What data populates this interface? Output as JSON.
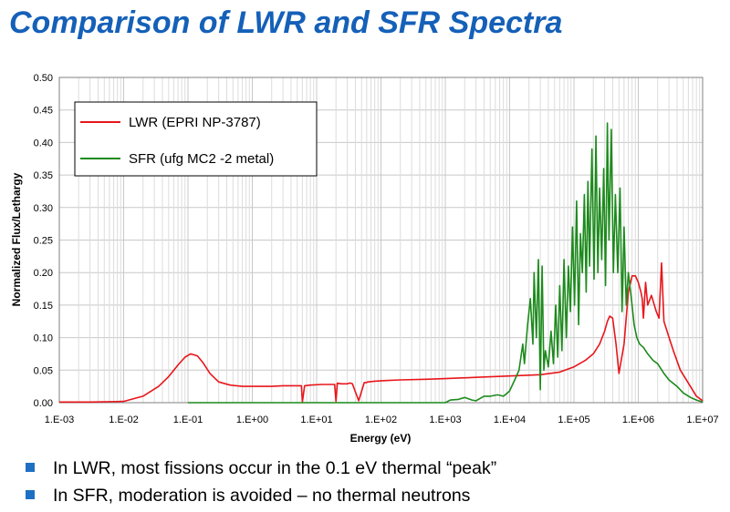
{
  "slide": {
    "title": "Comparison of LWR and SFR Spectra",
    "bullets": [
      "In LWR, most fissions occur in the 0.1 eV thermal “peak”",
      "In SFR, moderation is avoided – no thermal neutrons"
    ],
    "bullet_marker": "square-bullet-icon",
    "bullet_color": "#1f6fc5"
  },
  "chart_data": {
    "type": "line",
    "xlabel": "Energy (eV)",
    "ylabel": "Normalized Flux/Lethargy",
    "x_scale": "log",
    "xlim": [
      0.001,
      10000000
    ],
    "ylim": [
      0,
      0.5
    ],
    "x_ticks": [
      "1.E-03",
      "1.E-02",
      "1.E-01",
      "1.E+00",
      "1.E+01",
      "1.E+02",
      "1.E+03",
      "1.E+04",
      "1.E+05",
      "1.E+06",
      "1.E+07"
    ],
    "y_ticks": [
      "0.00",
      "0.05",
      "0.10",
      "0.15",
      "0.20",
      "0.25",
      "0.30",
      "0.35",
      "0.40",
      "0.45",
      "0.50"
    ],
    "grid": true,
    "legend_position": "top-left",
    "series": [
      {
        "name": "LWR (EPRI NP-3787)",
        "color": "#e8161b",
        "x": [
          0.001,
          0.003,
          0.01,
          0.02,
          0.035,
          0.05,
          0.07,
          0.09,
          0.11,
          0.14,
          0.17,
          0.22,
          0.3,
          0.45,
          0.7,
          1.0,
          1.5,
          2,
          3,
          4,
          5,
          5.8,
          6.0,
          6.5,
          8,
          12,
          16,
          19,
          20,
          21,
          24,
          30,
          32,
          34,
          36,
          45,
          55,
          60,
          62,
          64,
          80,
          120,
          200,
          500,
          1000,
          3000,
          10000,
          30000,
          60000,
          100000,
          150000,
          200000,
          250000,
          300000,
          330000,
          360000,
          400000,
          450000,
          500000,
          600000,
          700000,
          800000,
          900000,
          1000000,
          1100000,
          1150000,
          1200000,
          1300000,
          1400000,
          1600000,
          1900000,
          2100000,
          2300000,
          2500000,
          2900000,
          3500000,
          4500000,
          6000000,
          8000000,
          10000000
        ],
        "y": [
          0.001,
          0.001,
          0.002,
          0.01,
          0.025,
          0.04,
          0.058,
          0.07,
          0.075,
          0.072,
          0.062,
          0.045,
          0.032,
          0.027,
          0.025,
          0.025,
          0.025,
          0.025,
          0.026,
          0.026,
          0.026,
          0.026,
          0.001,
          0.026,
          0.027,
          0.028,
          0.028,
          0.028,
          0.002,
          0.03,
          0.029,
          0.029,
          0.03,
          0.03,
          0.029,
          0.003,
          0.031,
          0.031,
          0.032,
          0.032,
          0.033,
          0.034,
          0.035,
          0.036,
          0.037,
          0.039,
          0.041,
          0.043,
          0.047,
          0.055,
          0.065,
          0.075,
          0.09,
          0.11,
          0.125,
          0.133,
          0.13,
          0.09,
          0.045,
          0.09,
          0.17,
          0.195,
          0.195,
          0.185,
          0.17,
          0.16,
          0.13,
          0.185,
          0.15,
          0.165,
          0.14,
          0.13,
          0.215,
          0.125,
          0.105,
          0.08,
          0.05,
          0.03,
          0.01,
          0.003
        ]
      },
      {
        "name": "SFR (ufg MC2 -2 metal)",
        "color": "#1c8a1c",
        "x": [
          0.1,
          1000,
          1200,
          1600,
          2000,
          2600,
          3000,
          4000,
          5000,
          6500,
          8000,
          9000,
          10000,
          12000,
          14000,
          16000,
          17000,
          19000,
          21000,
          23000,
          24000,
          26000,
          28000,
          30000,
          32000,
          34000,
          36000,
          40000,
          44000,
          48000,
          52000,
          56000,
          60000,
          65000,
          70000,
          76000,
          82000,
          88000,
          95000,
          102000,
          110000,
          118000,
          126000,
          135000,
          145000,
          155000,
          165000,
          175000,
          190000,
          205000,
          220000,
          235000,
          250000,
          270000,
          290000,
          310000,
          330000,
          350000,
          380000,
          410000,
          440000,
          480000,
          520000,
          560000,
          600000,
          650000,
          700000,
          780000,
          860000,
          950000,
          1050000,
          1200000,
          1400000,
          1700000,
          2000000,
          2500000,
          3000000,
          4000000,
          5000000,
          6500000,
          8000000,
          10000000
        ],
        "y": [
          0,
          0,
          0.004,
          0.005,
          0.008,
          0.004,
          0.003,
          0.01,
          0.01,
          0.012,
          0.01,
          0.014,
          0.018,
          0.035,
          0.05,
          0.09,
          0.06,
          0.12,
          0.16,
          0.09,
          0.2,
          0.1,
          0.22,
          0.02,
          0.21,
          0.05,
          0.08,
          0.055,
          0.11,
          0.06,
          0.15,
          0.07,
          0.18,
          0.08,
          0.22,
          0.1,
          0.21,
          0.14,
          0.27,
          0.15,
          0.31,
          0.12,
          0.26,
          0.2,
          0.32,
          0.17,
          0.34,
          0.21,
          0.39,
          0.19,
          0.41,
          0.2,
          0.33,
          0.22,
          0.36,
          0.18,
          0.43,
          0.25,
          0.42,
          0.2,
          0.32,
          0.2,
          0.33,
          0.14,
          0.27,
          0.15,
          0.2,
          0.16,
          0.12,
          0.1,
          0.09,
          0.085,
          0.075,
          0.065,
          0.06,
          0.045,
          0.035,
          0.025,
          0.015,
          0.008,
          0.004,
          0.001
        ]
      }
    ]
  }
}
